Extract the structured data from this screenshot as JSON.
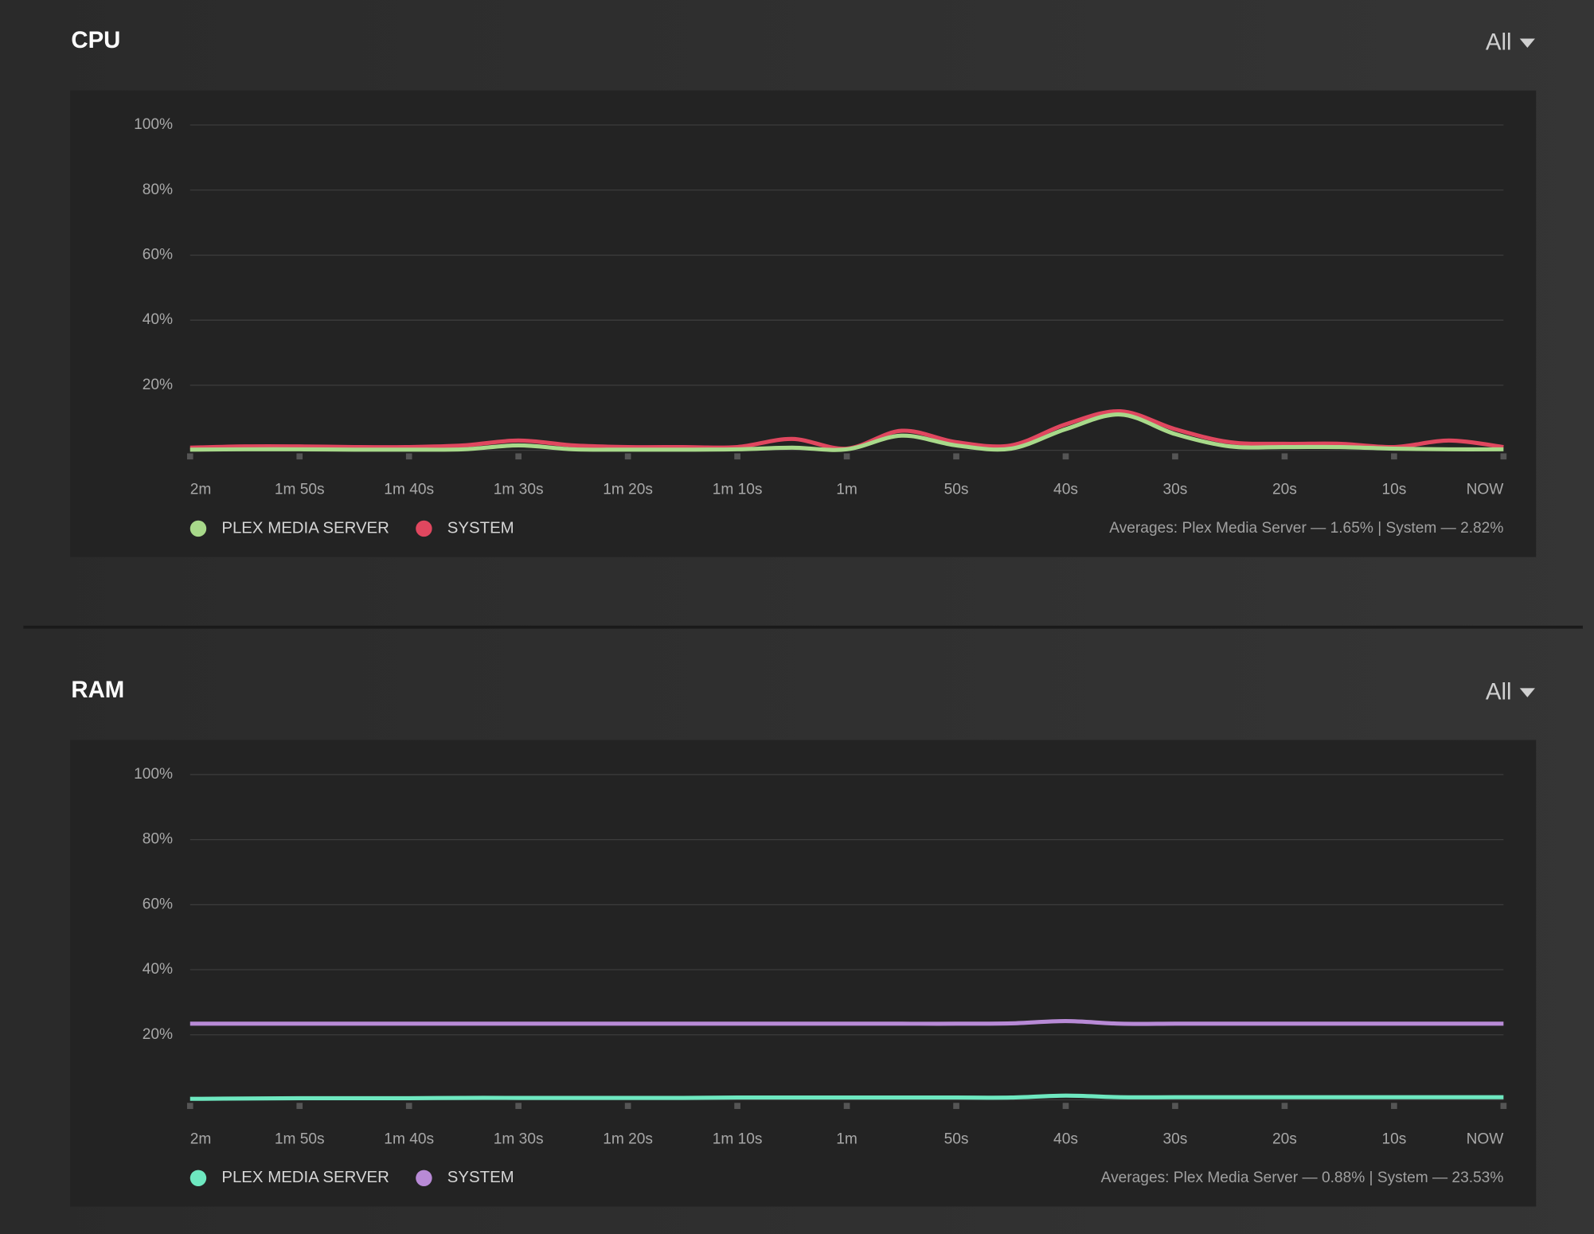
{
  "chart_data": [
    {
      "type": "line",
      "title": "CPU",
      "menu": "All",
      "note": "Averages: Plex Media Server — 1.65% | System — 2.82%",
      "x": [
        0,
        5,
        10,
        15,
        20,
        25,
        30,
        35,
        40,
        45,
        50,
        55,
        60,
        65,
        70,
        75,
        80,
        85,
        90,
        95,
        100,
        105,
        110,
        115,
        120
      ],
      "xlim": [
        0,
        120
      ],
      "xticks": [
        {
          "value": 0,
          "label": "2m"
        },
        {
          "value": 10,
          "label": "1m 50s"
        },
        {
          "value": 20,
          "label": "1m 40s"
        },
        {
          "value": 30,
          "label": "1m 30s"
        },
        {
          "value": 40,
          "label": "1m 20s"
        },
        {
          "value": 50,
          "label": "1m 10s"
        },
        {
          "value": 60,
          "label": "1m"
        },
        {
          "value": 70,
          "label": "50s"
        },
        {
          "value": 80,
          "label": "40s"
        },
        {
          "value": 90,
          "label": "30s"
        },
        {
          "value": 100,
          "label": "20s"
        },
        {
          "value": 110,
          "label": "10s"
        },
        {
          "value": 120,
          "label": "NOW"
        }
      ],
      "ylim": [
        0,
        100
      ],
      "yticks": [
        {
          "value": 20,
          "label": "20%"
        },
        {
          "value": 40,
          "label": "40%"
        },
        {
          "value": 60,
          "label": "60%"
        },
        {
          "value": 80,
          "label": "80%"
        },
        {
          "value": 100,
          "label": "100%"
        }
      ],
      "grid": true,
      "series": [
        {
          "name": "SYSTEM",
          "color": "#e0475f",
          "values": [
            0.8,
            1.2,
            1.2,
            1.0,
            1.0,
            1.5,
            3.0,
            1.5,
            1.0,
            1.0,
            1.0,
            3.5,
            0.5,
            6.0,
            2.5,
            1.5,
            8.0,
            12.0,
            6.5,
            2.5,
            2.0,
            2.0,
            1.0,
            3.0,
            1.0
          ]
        },
        {
          "name": "PLEX MEDIA SERVER",
          "color": "#a8d98a",
          "values": [
            0.2,
            0.3,
            0.3,
            0.2,
            0.2,
            0.3,
            1.5,
            0.3,
            0.2,
            0.2,
            0.3,
            0.8,
            0.3,
            4.5,
            1.5,
            0.5,
            6.5,
            11.0,
            5.0,
            1.2,
            1.0,
            1.0,
            0.5,
            0.3,
            0.3
          ]
        }
      ]
    },
    {
      "type": "line",
      "title": "RAM",
      "menu": "All",
      "note": "Averages: Plex Media Server — 0.88% | System — 23.53%",
      "x": [
        0,
        5,
        10,
        15,
        20,
        25,
        30,
        35,
        40,
        45,
        50,
        55,
        60,
        65,
        70,
        75,
        80,
        85,
        90,
        95,
        100,
        105,
        110,
        115,
        120
      ],
      "xlim": [
        0,
        120
      ],
      "xticks": [
        {
          "value": 0,
          "label": "2m"
        },
        {
          "value": 10,
          "label": "1m 50s"
        },
        {
          "value": 20,
          "label": "1m 40s"
        },
        {
          "value": 30,
          "label": "1m 30s"
        },
        {
          "value": 40,
          "label": "1m 20s"
        },
        {
          "value": 50,
          "label": "1m 10s"
        },
        {
          "value": 60,
          "label": "1m"
        },
        {
          "value": 70,
          "label": "50s"
        },
        {
          "value": 80,
          "label": "40s"
        },
        {
          "value": 90,
          "label": "30s"
        },
        {
          "value": 100,
          "label": "20s"
        },
        {
          "value": 110,
          "label": "10s"
        },
        {
          "value": 120,
          "label": "NOW"
        }
      ],
      "ylim": [
        0,
        100
      ],
      "yticks": [
        {
          "value": 20,
          "label": "20%"
        },
        {
          "value": 40,
          "label": "40%"
        },
        {
          "value": 60,
          "label": "60%"
        },
        {
          "value": 80,
          "label": "80%"
        },
        {
          "value": 100,
          "label": "100%"
        }
      ],
      "grid": true,
      "series": [
        {
          "name": "SYSTEM",
          "color": "#b88ad6",
          "values": [
            23.4,
            23.4,
            23.4,
            23.4,
            23.4,
            23.4,
            23.4,
            23.4,
            23.4,
            23.4,
            23.4,
            23.4,
            23.4,
            23.4,
            23.4,
            23.5,
            24.2,
            23.4,
            23.4,
            23.4,
            23.4,
            23.4,
            23.4,
            23.4,
            23.4
          ]
        },
        {
          "name": "PLEX MEDIA SERVER",
          "color": "#6ee8c0",
          "values": [
            0.3,
            0.4,
            0.5,
            0.5,
            0.5,
            0.6,
            0.6,
            0.6,
            0.6,
            0.6,
            0.7,
            0.7,
            0.7,
            0.7,
            0.7,
            0.7,
            1.3,
            0.8,
            0.8,
            0.8,
            0.8,
            0.8,
            0.8,
            0.8,
            0.8
          ]
        }
      ]
    }
  ]
}
